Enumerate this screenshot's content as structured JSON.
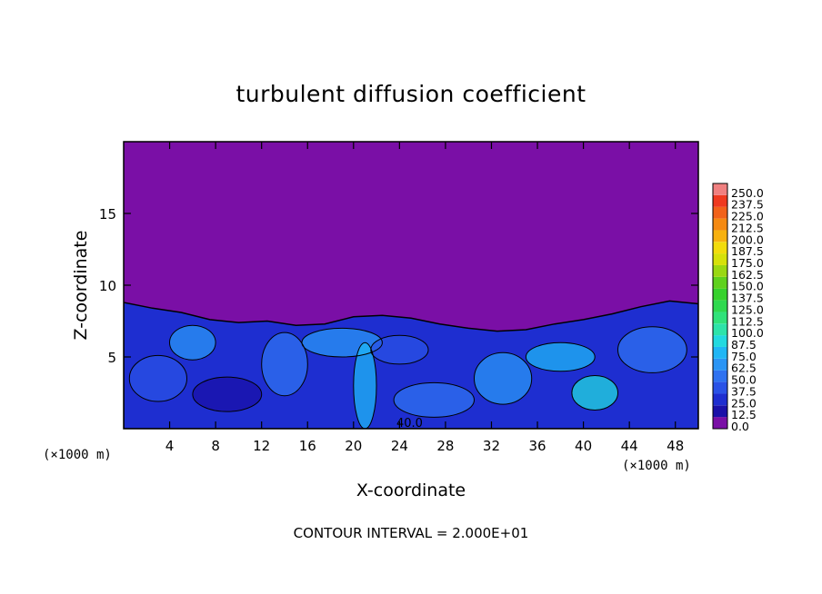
{
  "chart_data": {
    "type": "heatmap",
    "title": "turbulent diffusion coefficient",
    "xlabel": "X-coordinate",
    "ylabel": "Z-coordinate",
    "x_unit": "(×1000 m)",
    "y_unit": "(×1000 m)",
    "xlim": [
      0,
      50
    ],
    "ylim": [
      0,
      20
    ],
    "x_ticks": [
      4,
      8,
      12,
      16,
      20,
      24,
      28,
      32,
      36,
      40,
      44,
      48
    ],
    "y_ticks": [
      5,
      10,
      15
    ],
    "contour_interval": "CONTOUR INTERVAL = 2.000E+01",
    "contour_label": "40.0",
    "colorbar": {
      "levels": [
        "0.0",
        "12.5",
        "25.0",
        "37.5",
        "50.0",
        "62.5",
        "75.0",
        "87.5",
        "100.0",
        "112.5",
        "125.0",
        "137.5",
        "150.0",
        "162.5",
        "175.0",
        "187.5",
        "200.0",
        "212.5",
        "225.0",
        "237.5",
        "250.0"
      ],
      "colors": [
        "#7a0fa6",
        "#1a10a8",
        "#1e2ed0",
        "#2a52e6",
        "#2f72f0",
        "#2a95f5",
        "#1fb6f5",
        "#22d9df",
        "#2ee3a9",
        "#30e27a",
        "#2fd94f",
        "#36d12c",
        "#5fd11d",
        "#9ad812",
        "#d6e10a",
        "#f2dc0c",
        "#f7b10f",
        "#f58a12",
        "#f2621a",
        "#ef3a20",
        "#f08080"
      ]
    },
    "field": {
      "upper_value": "0.0",
      "boundary_layer_top_km": [
        8.8,
        8.4,
        8.1,
        7.6,
        7.4,
        7.5,
        7.2,
        7.3,
        7.8,
        7.9,
        7.7,
        7.3,
        7.0,
        6.8,
        6.9,
        7.3,
        7.6,
        8.0,
        8.5,
        8.9,
        8.7
      ]
    },
    "colors": {
      "background": "#7a0fa6",
      "contour": "#000000"
    }
  },
  "footer": {
    "text": "CONTOUR INTERVAL = 2.000E+01"
  }
}
